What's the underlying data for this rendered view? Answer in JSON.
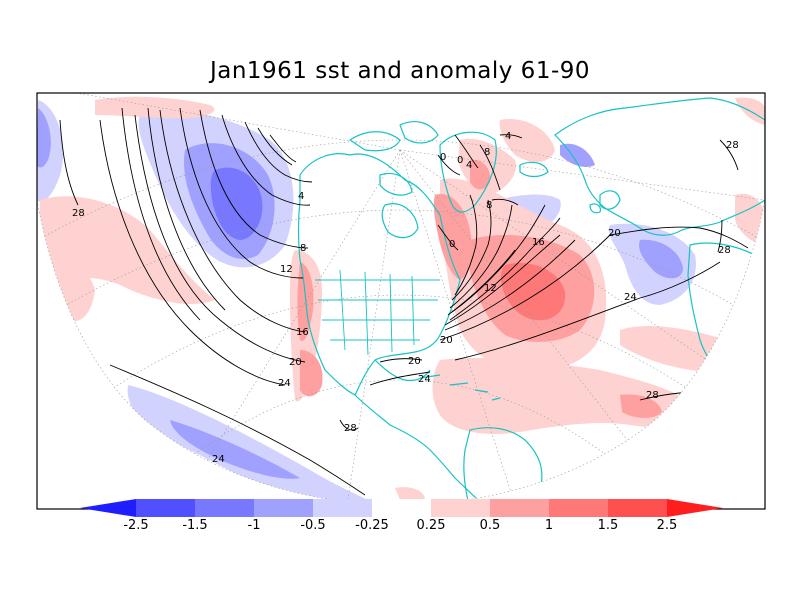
{
  "title": "Jan1961 sst and anomaly 61-90",
  "colorbar": {
    "levels": [
      "-2.5",
      "-1.5",
      "-1",
      "-0.5",
      "-0.25",
      "0.25",
      "0.5",
      "1",
      "1.5",
      "2.5"
    ],
    "colors": [
      "#1e1eff",
      "#5050ff",
      "#7878ff",
      "#a0a0ff",
      "#d2d2ff",
      "#ffffff",
      "#ffd2d2",
      "#ffa0a0",
      "#ff7878",
      "#ff5050",
      "#ff1e1e"
    ]
  },
  "colors": {
    "land_outline": "#18c3c3",
    "contour_line": "#000000",
    "grid_line": "#9a9a9a"
  },
  "contour_labels": [
    "28",
    "28",
    "28",
    "28",
    "28",
    "24",
    "24",
    "24",
    "24",
    "20",
    "20",
    "20",
    "20",
    "16",
    "16",
    "12",
    "12",
    "8",
    "8",
    "8",
    "4",
    "4",
    "4",
    "0",
    "0",
    "0"
  ]
}
